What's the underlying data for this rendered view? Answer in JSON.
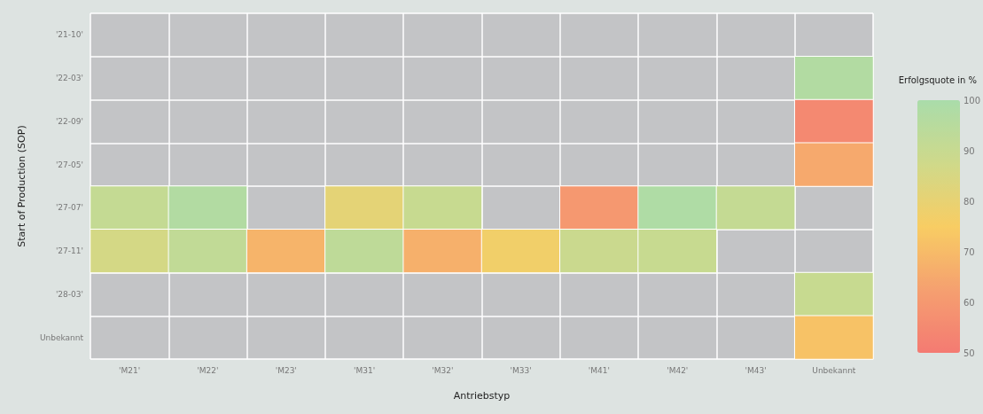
{
  "chart_data": {
    "type": "heatmap",
    "xlabel": "Antriebstyp",
    "ylabel": "Start of Production (SOP)",
    "clabel": "Erfolgsquote in %",
    "categories": [
      "'M21'",
      "'M22'",
      "'M23'",
      "'M31'",
      "'M32'",
      "'M33'",
      "'M41'",
      "'M42'",
      "'M43'",
      "Unbekannt"
    ],
    "y_categories": [
      "'21-10'",
      "'22-03'",
      "'22-09'",
      "'27-05'",
      "'27-07'",
      "'27-11'",
      "'28-03'",
      "Unbekannt"
    ],
    "cells": [
      [
        null,
        null,
        null,
        null,
        null,
        null,
        null,
        null,
        null,
        null
      ],
      [
        null,
        null,
        null,
        null,
        null,
        null,
        null,
        null,
        null,
        97
      ],
      [
        null,
        null,
        null,
        null,
        null,
        null,
        null,
        null,
        null,
        55
      ],
      [
        null,
        null,
        null,
        null,
        null,
        null,
        null,
        null,
        null,
        65
      ],
      [
        91,
        97,
        null,
        81,
        90,
        null,
        60,
        98,
        91,
        null
      ],
      [
        86,
        92,
        68,
        93,
        67,
        77,
        89,
        90,
        null,
        null
      ],
      [
        null,
        null,
        null,
        null,
        null,
        null,
        null,
        null,
        null,
        90
      ],
      [
        null,
        null,
        null,
        null,
        null,
        null,
        null,
        null,
        null,
        72
      ]
    ],
    "clim": [
      50,
      100
    ],
    "cticks": [
      50,
      60,
      70,
      80,
      90,
      100
    ],
    "grid": true
  }
}
